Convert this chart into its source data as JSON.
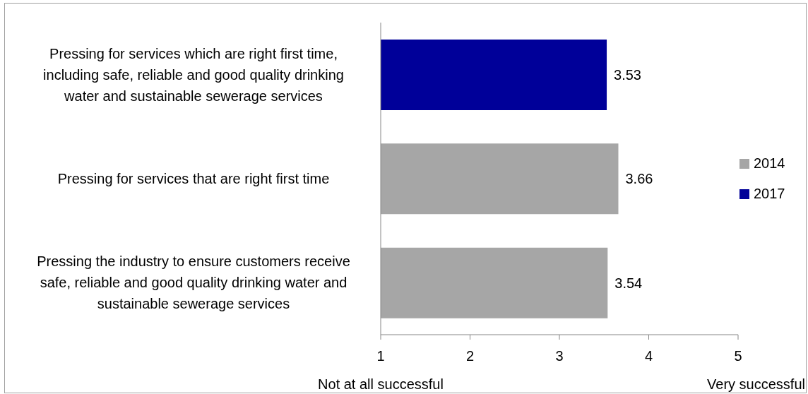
{
  "chart_data": {
    "type": "bar",
    "orientation": "horizontal",
    "categories": [
      "Pressing for services which are right first time, including safe, reliable and good quality drinking water and sustainable sewerage services",
      "Pressing for services that are right first time",
      "Pressing the industry to ensure customers receive safe, reliable and good quality drinking water and sustainable sewerage services"
    ],
    "series": [
      {
        "name": "2014",
        "color": "#a6a6a6",
        "values": [
          null,
          3.66,
          3.54
        ]
      },
      {
        "name": "2017",
        "color": "#000099",
        "values": [
          3.53,
          null,
          null
        ]
      }
    ],
    "xlim": [
      1,
      5
    ],
    "xticks": [
      1,
      2,
      3,
      4,
      5
    ],
    "data_labels": true,
    "legend": "right",
    "annotations": [
      "Not at all successful",
      "Very successful"
    ]
  }
}
